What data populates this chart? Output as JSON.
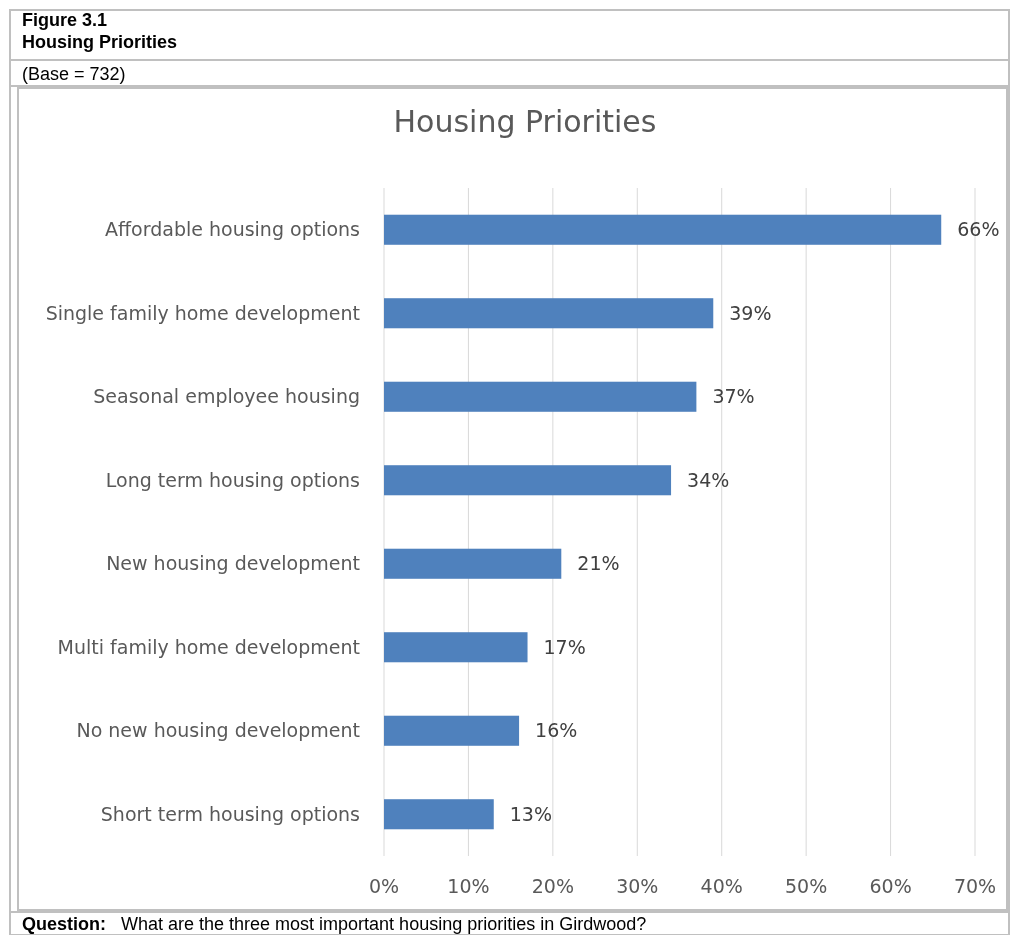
{
  "chart_data": {
    "type": "bar",
    "orientation": "horizontal",
    "title": "Housing Priorities",
    "annotations": [
      "Figure 3.1",
      "Housing Priorities",
      "(Base = 732)",
      "Question:   What are the three most important housing priorities in Girdwood?"
    ],
    "categories": [
      "Affordable housing options",
      "Single family home development",
      "Seasonal employee housing",
      "Long term housing options",
      "New housing development",
      "Multi family home development",
      "No new housing development",
      "Short term housing options"
    ],
    "values": [
      66,
      39,
      37,
      34,
      21,
      17,
      16,
      13
    ],
    "value_labels": [
      "66%",
      "39%",
      "37%",
      "34%",
      "21%",
      "17%",
      "16%",
      "13%"
    ],
    "color": "#4f81bd",
    "xlim": [
      0,
      70
    ],
    "xticks": [
      {
        "value": 0,
        "label": "0%"
      },
      {
        "value": 10,
        "label": "10%"
      },
      {
        "value": 20,
        "label": "20%"
      },
      {
        "value": 30,
        "label": "30%"
      },
      {
        "value": 40,
        "label": "40%"
      },
      {
        "value": 50,
        "label": "50%"
      },
      {
        "value": 60,
        "label": "60%"
      },
      {
        "value": 70,
        "label": "70%"
      }
    ],
    "grid": "x"
  }
}
